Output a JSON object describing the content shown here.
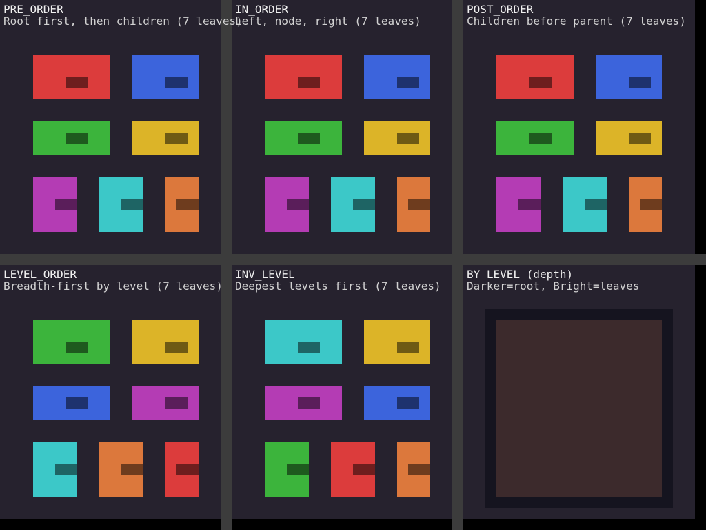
{
  "colors": {
    "red": "#dc3c3c",
    "blue": "#3c64dc",
    "green": "#3cb43c",
    "yellow": "#dcb428",
    "purple": "#b43cb4",
    "cyan": "#3cc8c8",
    "orange": "#dc783c",
    "depth_frame": "#15141f",
    "depth_fill": "#3c2a2c"
  },
  "panels": [
    {
      "title": "PRE_ORDER",
      "subtitle": "Root first, then children (7 leaves)",
      "leaves": [
        "red",
        "blue",
        "green",
        "yellow",
        "purple",
        "cyan",
        "orange"
      ]
    },
    {
      "title": "IN_ORDER",
      "subtitle": "Left, node, right (7 leaves)",
      "leaves": [
        "red",
        "blue",
        "green",
        "yellow",
        "purple",
        "cyan",
        "orange"
      ]
    },
    {
      "title": "POST_ORDER",
      "subtitle": "Children before parent (7 leaves)",
      "leaves": [
        "red",
        "blue",
        "green",
        "yellow",
        "purple",
        "cyan",
        "orange"
      ]
    },
    {
      "title": "LEVEL_ORDER",
      "subtitle": "Breadth-first by level (7 leaves)",
      "leaves": [
        "green",
        "yellow",
        "blue",
        "purple",
        "cyan",
        "orange",
        "red"
      ]
    },
    {
      "title": "INV_LEVEL",
      "subtitle": "Deepest levels first (7 leaves)",
      "leaves": [
        "cyan",
        "yellow",
        "purple",
        "blue",
        "green",
        "red",
        "orange"
      ]
    },
    {
      "title": "BY LEVEL (depth)",
      "subtitle": "Darker=root, Bright=leaves",
      "leaves": []
    }
  ]
}
